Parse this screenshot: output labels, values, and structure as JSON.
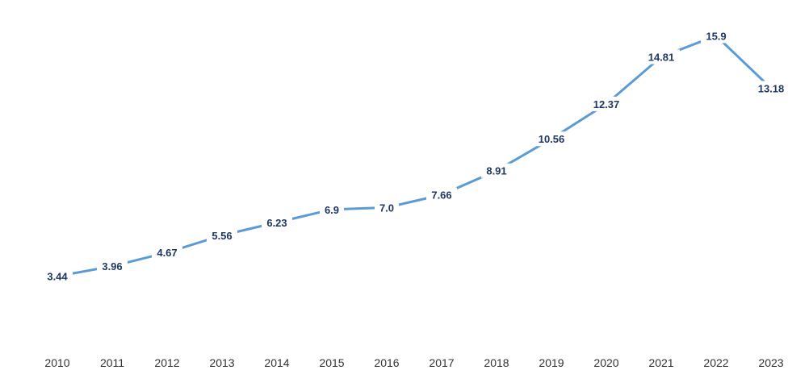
{
  "chart_data": {
    "type": "line",
    "title": "",
    "xlabel": "",
    "ylabel": "",
    "categories": [
      "2010",
      "2011",
      "2012",
      "2013",
      "2014",
      "2015",
      "2016",
      "2017",
      "2018",
      "2019",
      "2020",
      "2021",
      "2022",
      "2023"
    ],
    "values": [
      3.44,
      3.96,
      4.67,
      5.56,
      6.23,
      6.9,
      7.0,
      7.66,
      8.91,
      10.56,
      12.37,
      14.81,
      15.9,
      13.18
    ],
    "value_labels": [
      "3.44",
      "3.96",
      "4.67",
      "5.56",
      "6.23",
      "6.9",
      "7.0",
      "7.66",
      "8.91",
      "10.56",
      "12.37",
      "14.81",
      "15.9",
      "13.18"
    ],
    "ylim": [
      0,
      16.5
    ],
    "grid": false,
    "drop_lines": true,
    "colors": {
      "line": "#5b9bd5",
      "drop_line": "#9dc3e6",
      "value_label": "#1f3864",
      "tick_label": "#333333"
    }
  }
}
